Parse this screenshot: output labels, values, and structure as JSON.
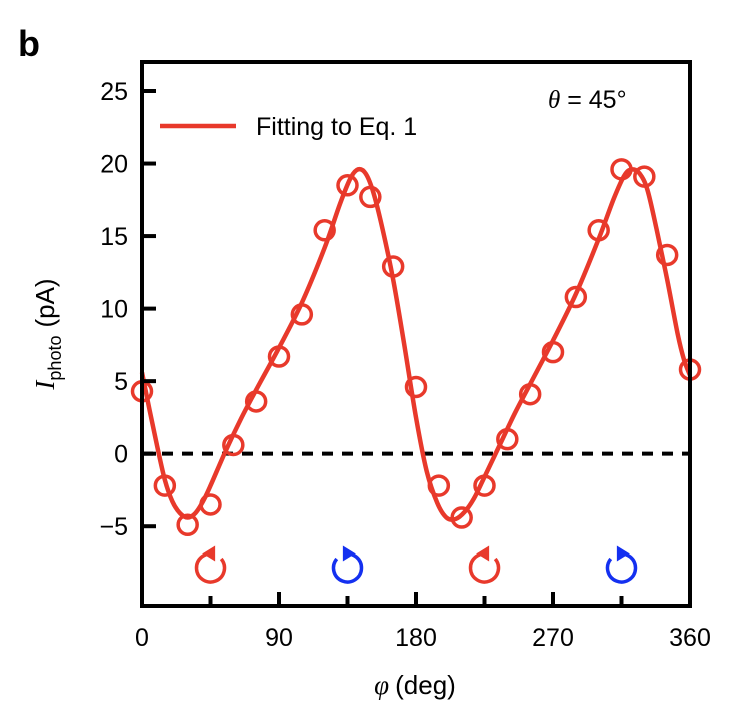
{
  "panel_label": "b",
  "chart_data": {
    "type": "scatter",
    "title": "",
    "xlabel_symbol": "φ",
    "xlabel_unit": "(deg)",
    "ylabel_symbol": "I",
    "ylabel_subscript": "photo",
    "ylabel_unit": "(pA)",
    "xlim": [
      0,
      360
    ],
    "ylim": [
      -10.5,
      27
    ],
    "xticks": [
      0,
      90,
      180,
      270,
      360
    ],
    "xtick_labels": [
      "0",
      "90",
      "180",
      "270",
      "360"
    ],
    "minor_xticks": [
      45,
      135,
      225,
      315
    ],
    "yticks": [
      -5,
      0,
      5,
      10,
      15,
      20,
      25
    ],
    "ytick_labels": [
      "−5",
      "0",
      "5",
      "10",
      "15",
      "20",
      "25"
    ],
    "zero_line": "dashed",
    "annotation": {
      "symbol": "θ",
      "text": " = 45°"
    },
    "legend": {
      "entries": [
        "Fitting to Eq. 1"
      ],
      "placement": "top-left"
    },
    "series": [
      {
        "name": "Data",
        "style": "open-circle",
        "color": "#e8392b",
        "x": [
          0,
          15,
          30,
          45,
          60,
          75,
          90,
          105,
          120,
          135,
          150,
          165,
          180,
          195,
          210,
          225,
          240,
          255,
          270,
          285,
          300,
          315,
          330,
          345,
          360
        ],
        "y": [
          4.3,
          -2.2,
          -4.9,
          -3.5,
          0.6,
          3.6,
          6.7,
          9.6,
          15.4,
          18.5,
          17.7,
          12.9,
          4.6,
          -2.2,
          -4.4,
          -2.2,
          1.0,
          4.1,
          7.0,
          10.8,
          15.4,
          19.6,
          19.1,
          13.7,
          5.8
        ]
      },
      {
        "name": "Fitting to Eq. 1",
        "style": "line",
        "color": "#e8392b",
        "x": [
          0,
          5,
          10,
          15,
          20,
          25,
          30,
          35,
          40,
          45,
          55,
          65,
          75,
          90,
          105,
          120,
          130,
          137,
          142,
          147,
          152,
          158,
          165,
          172,
          180,
          187,
          194,
          200,
          206,
          212,
          218,
          225,
          235,
          245,
          255,
          270,
          285,
          300,
          310,
          317,
          322,
          327,
          332,
          338,
          345,
          352,
          356,
          360
        ],
        "y": [
          5.6,
          3.0,
          0.5,
          -1.8,
          -3.3,
          -4.1,
          -4.4,
          -4.1,
          -3.3,
          -2.2,
          0.2,
          2.4,
          4.4,
          7.3,
          10.4,
          14.2,
          17.2,
          19.0,
          19.6,
          19.3,
          18.0,
          15.5,
          12.0,
          7.7,
          2.5,
          -1.2,
          -3.4,
          -4.4,
          -4.5,
          -4.0,
          -3.1,
          -1.6,
          0.6,
          2.8,
          4.8,
          7.8,
          11.0,
          14.8,
          17.6,
          19.2,
          19.6,
          19.3,
          18.2,
          15.5,
          12.0,
          8.2,
          6.5,
          5.4
        ]
      }
    ],
    "polarization_markers": [
      {
        "x": 45,
        "handedness": "counter-clockwise",
        "color": "#e8392b"
      },
      {
        "x": 135,
        "handedness": "clockwise",
        "color": "#1430f0"
      },
      {
        "x": 225,
        "handedness": "counter-clockwise",
        "color": "#e8392b"
      },
      {
        "x": 315,
        "handedness": "clockwise",
        "color": "#1430f0"
      }
    ]
  }
}
